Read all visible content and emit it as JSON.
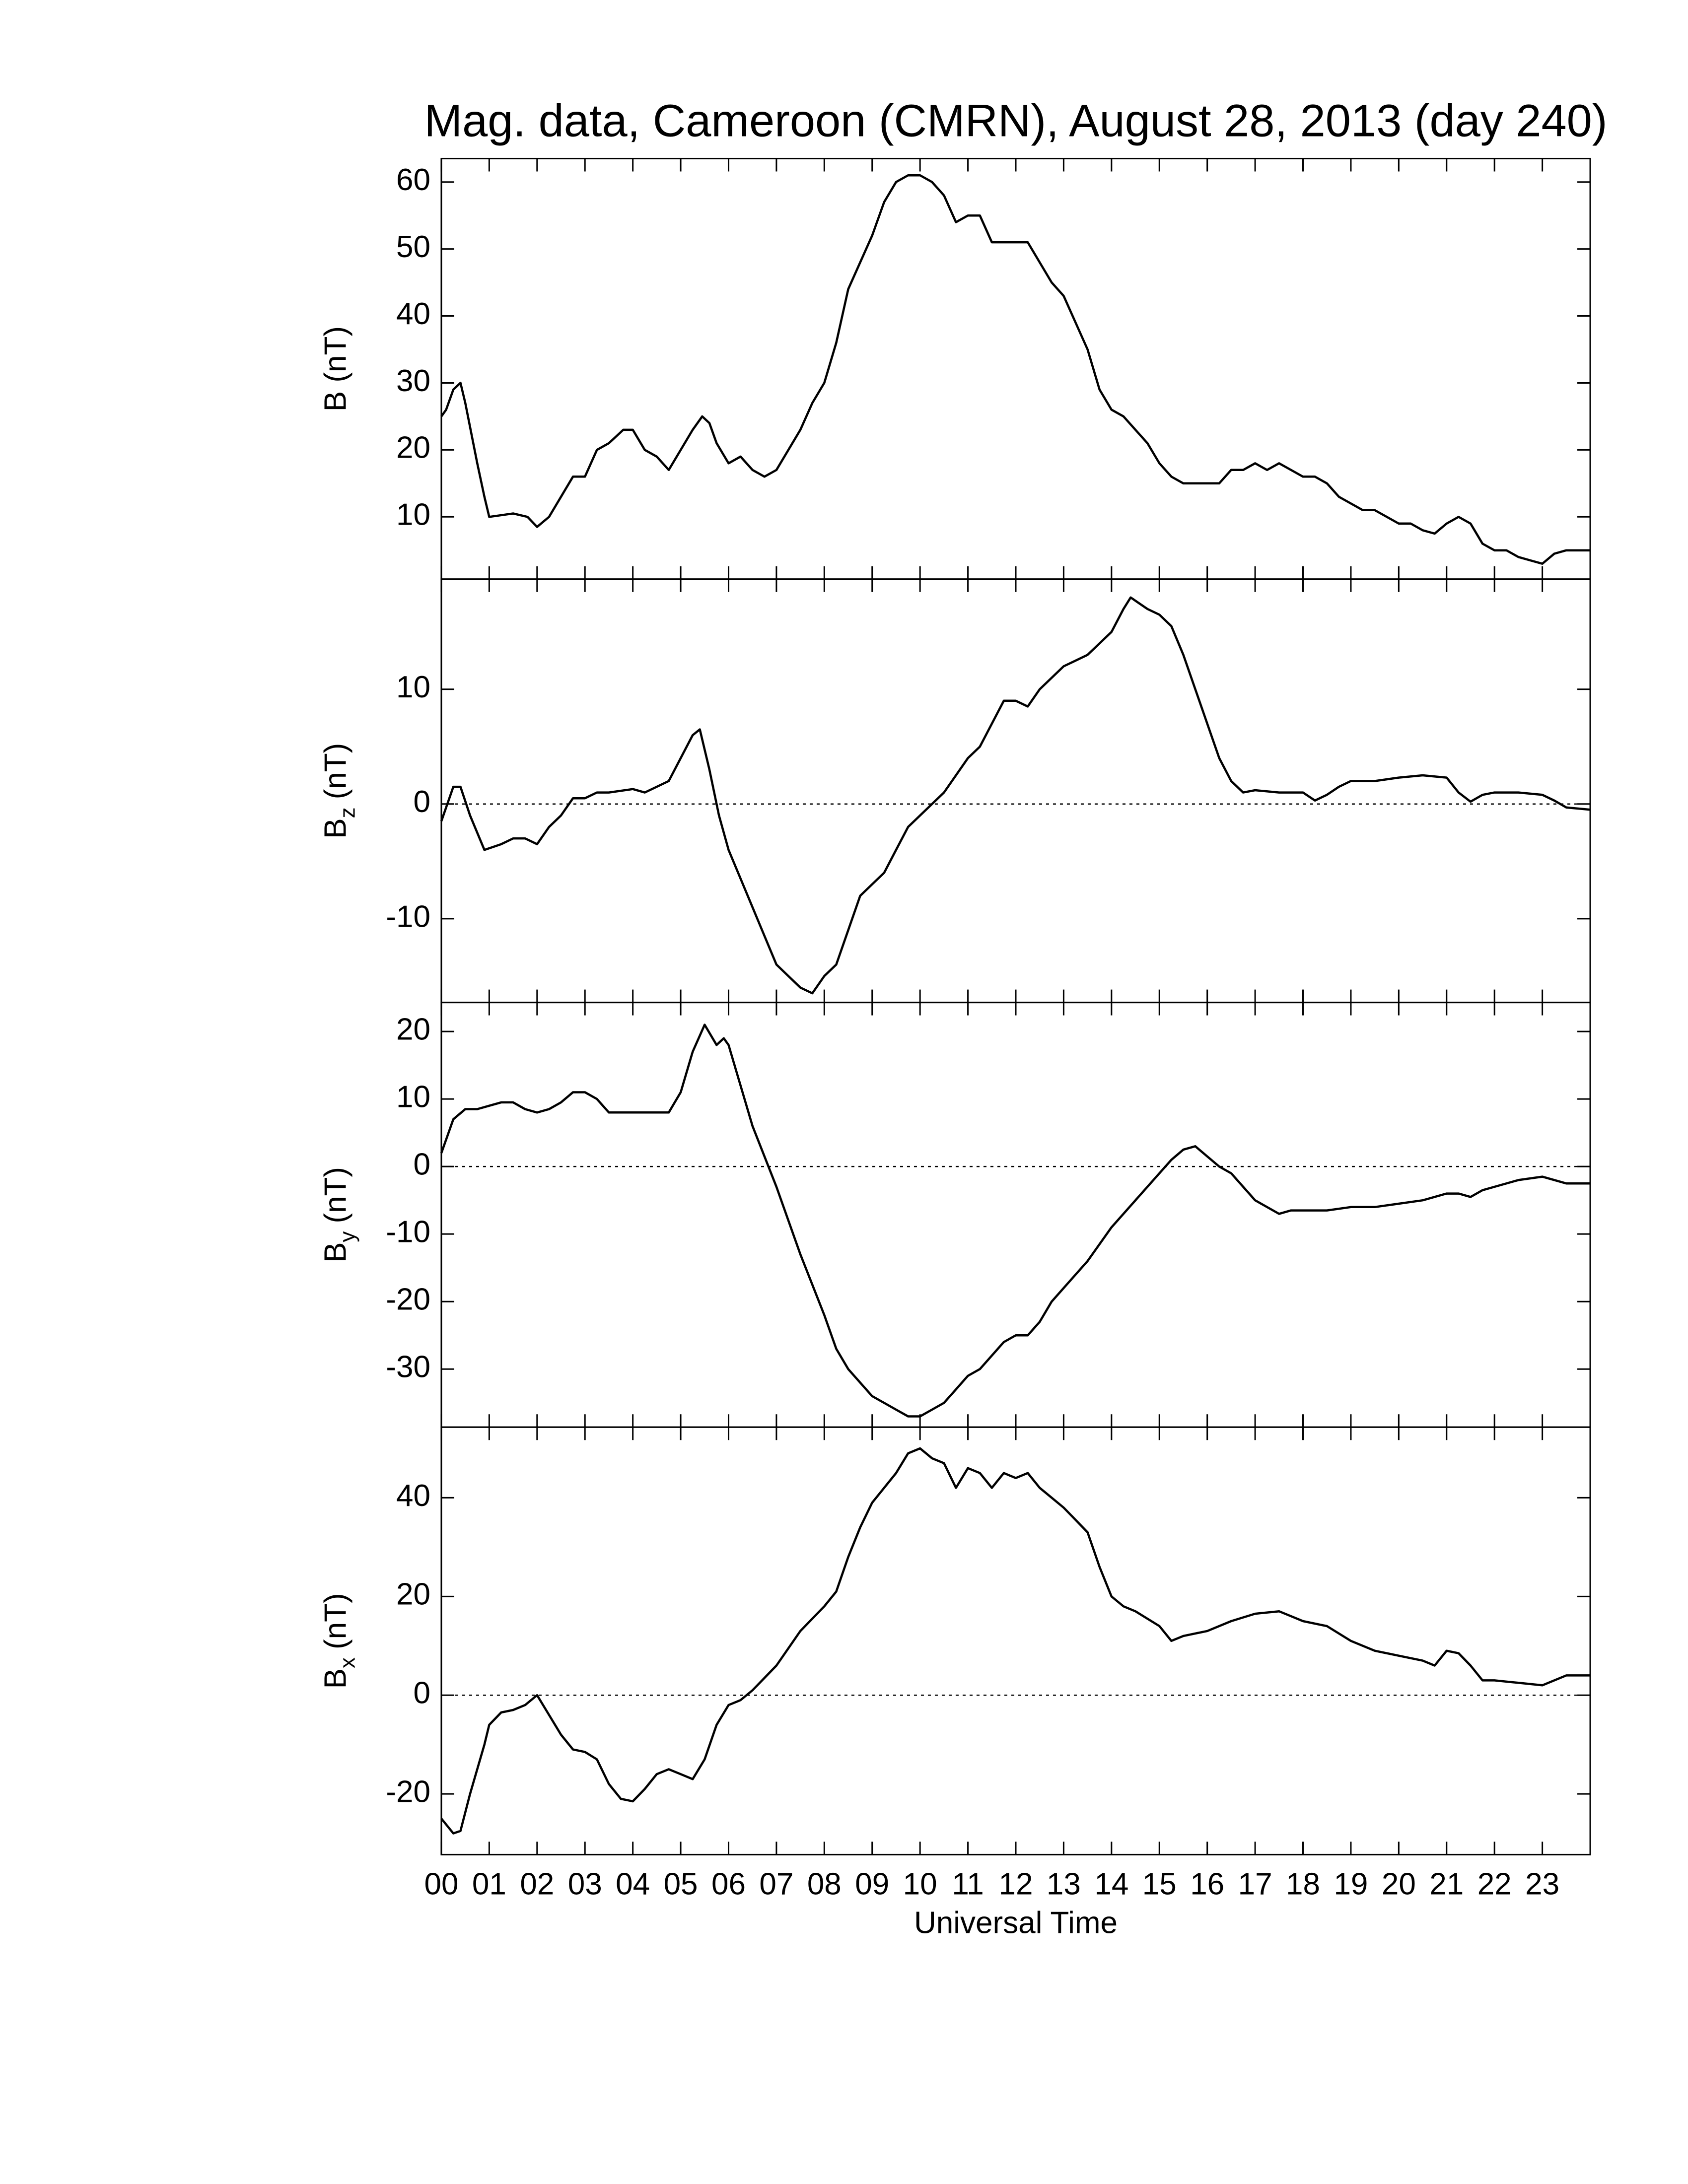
{
  "chart_data": [
    {
      "type": "line",
      "title": "Mag. data, Cameroon (CMRN), August 28, 2013 (day 240)",
      "ylabel": [
        "B (nT)"
      ],
      "color": "#000000",
      "xlim": [
        0,
        24
      ],
      "ylim": [
        0.7,
        63.5
      ],
      "yticks": [
        10,
        20,
        30,
        40,
        50,
        60
      ],
      "zero_line": false,
      "x": [
        0,
        0.1,
        0.25,
        0.4,
        0.5,
        0.75,
        0.9,
        1,
        1.5,
        1.8,
        2,
        2.25,
        2.5,
        2.75,
        3,
        3.25,
        3.5,
        3.8,
        4,
        4.25,
        4.5,
        4.75,
        5,
        5.25,
        5.45,
        5.6,
        5.75,
        6,
        6.25,
        6.5,
        6.75,
        7,
        7.25,
        7.5,
        7.75,
        8,
        8.25,
        8.5,
        8.75,
        9,
        9.25,
        9.5,
        9.75,
        10,
        10.25,
        10.5,
        10.75,
        11,
        11.25,
        11.5,
        11.75,
        12,
        12.25,
        12.5,
        12.75,
        13,
        13.25,
        13.5,
        13.75,
        14,
        14.25,
        14.5,
        14.75,
        15,
        15.25,
        15.5,
        15.75,
        16,
        16.25,
        16.5,
        16.75,
        17,
        17.25,
        17.5,
        17.75,
        18,
        18.25,
        18.5,
        18.75,
        19,
        19.25,
        19.5,
        19.75,
        20,
        20.25,
        20.5,
        20.75,
        21,
        21.25,
        21.5,
        21.75,
        22,
        22.25,
        22.5,
        22.75,
        23,
        23.25,
        23.5,
        24
      ],
      "values": [
        25,
        26,
        29,
        30,
        27,
        18,
        13,
        10,
        10.5,
        10,
        8.5,
        10,
        13,
        16,
        16,
        20,
        21,
        23,
        23,
        20,
        19,
        17,
        20,
        23,
        25,
        24,
        21,
        18,
        19,
        17,
        16,
        17,
        20,
        23,
        27,
        30,
        36,
        44,
        48,
        52,
        57,
        60,
        61,
        61,
        60,
        58,
        54,
        55,
        55,
        51,
        51,
        51,
        51,
        48,
        45,
        43,
        39,
        35,
        29,
        26,
        25,
        23,
        21,
        18,
        16,
        15,
        15,
        15,
        15,
        17,
        17,
        18,
        17,
        18,
        17,
        16,
        16,
        15,
        13,
        12,
        11,
        11,
        10,
        9,
        9,
        8,
        7.5,
        9,
        10,
        9,
        6,
        5,
        5,
        4,
        3.5,
        3,
        4.5,
        5,
        5
      ]
    },
    {
      "type": "line",
      "ylabel": [
        "B",
        "z",
        "(nT)"
      ],
      "color": "#000000",
      "xlim": [
        0,
        24
      ],
      "ylim": [
        -17.3,
        19.6
      ],
      "yticks": [
        -10,
        0,
        10
      ],
      "zero_line": true,
      "x": [
        0,
        0.25,
        0.4,
        0.6,
        0.9,
        1.25,
        1.5,
        1.75,
        2,
        2.25,
        2.5,
        2.75,
        3,
        3.25,
        3.5,
        4,
        4.25,
        4.5,
        4.75,
        5,
        5.25,
        5.4,
        5.6,
        5.8,
        6,
        6.5,
        7,
        7.5,
        7.75,
        8,
        8.25,
        8.5,
        8.75,
        9,
        9.25,
        9.5,
        9.75,
        10,
        10.5,
        11,
        11.25,
        11.5,
        11.75,
        12,
        12.25,
        12.5,
        12.75,
        13,
        13.5,
        14,
        14.25,
        14.4,
        14.75,
        15,
        15.25,
        15.5,
        15.75,
        16,
        16.25,
        16.5,
        16.75,
        17,
        17.5,
        18,
        18.25,
        18.5,
        18.75,
        19,
        19.5,
        20,
        20.5,
        21,
        21.25,
        21.5,
        21.75,
        22,
        22.5,
        23,
        23.25,
        23.5,
        24
      ],
      "values": [
        -1.5,
        1.5,
        1.5,
        -1,
        -4,
        -3.5,
        -3,
        -3,
        -3.5,
        -2,
        -1,
        0.5,
        0.5,
        1,
        1,
        1.3,
        1,
        1.5,
        2,
        4,
        6,
        6.5,
        3,
        -1,
        -4,
        -9,
        -14,
        -16,
        -16.5,
        -15,
        -14,
        -11,
        -8,
        -7,
        -6,
        -4,
        -2,
        -1,
        1,
        4,
        5,
        7,
        9,
        9,
        8.5,
        10,
        11,
        12,
        13,
        15,
        17,
        18,
        17,
        16.5,
        15.5,
        13,
        10,
        7,
        4,
        2,
        1,
        1.2,
        1,
        1,
        0.3,
        0.8,
        1.5,
        2,
        2,
        2.3,
        2.5,
        2.3,
        1,
        0.2,
        0.8,
        1,
        1,
        0.8,
        0.3,
        -0.3,
        -0.5
      ]
    },
    {
      "type": "line",
      "ylabel": [
        "B",
        "y",
        "(nT)"
      ],
      "color": "#000000",
      "xlim": [
        0,
        24
      ],
      "ylim": [
        -38.6,
        24.3
      ],
      "yticks": [
        -30,
        -20,
        -10,
        0,
        10,
        20
      ],
      "zero_line": true,
      "x": [
        0,
        0.25,
        0.5,
        0.75,
        1,
        1.25,
        1.5,
        1.75,
        2,
        2.25,
        2.5,
        2.75,
        3,
        3.25,
        3.5,
        3.75,
        4,
        4.5,
        4.75,
        5,
        5.25,
        5.5,
        5.75,
        5.9,
        6,
        6.25,
        6.5,
        7,
        7.5,
        8,
        8.25,
        8.5,
        8.75,
        9,
        9.5,
        9.75,
        10,
        10.25,
        10.5,
        10.75,
        11,
        11.25,
        11.5,
        11.75,
        12,
        12.25,
        12.5,
        12.75,
        13,
        13.5,
        14,
        14.5,
        15,
        15.25,
        15.5,
        15.75,
        16,
        16.25,
        16.5,
        16.75,
        17,
        17.25,
        17.5,
        17.75,
        18,
        18.5,
        19,
        19.5,
        20,
        20.5,
        21,
        21.25,
        21.5,
        21.75,
        22,
        22.5,
        23,
        23.5,
        24
      ],
      "values": [
        2,
        7,
        8.5,
        8.5,
        9,
        9.5,
        9.5,
        8.5,
        8,
        8.5,
        9.5,
        11,
        11,
        10,
        8,
        8,
        8,
        8,
        8,
        11,
        17,
        21,
        18,
        19,
        18,
        12,
        6,
        -3,
        -13,
        -22,
        -27,
        -30,
        -32,
        -34,
        -36,
        -37,
        -37,
        -36,
        -35,
        -33,
        -31,
        -30,
        -28,
        -26,
        -25,
        -25,
        -23,
        -20,
        -18,
        -14,
        -9,
        -5,
        -1,
        1,
        2.5,
        3,
        1.5,
        0,
        -1,
        -3,
        -5,
        -6,
        -7,
        -6.5,
        -6.5,
        -6.5,
        -6,
        -6,
        -5.5,
        -5,
        -4,
        -4,
        -4.5,
        -3.5,
        -3,
        -2,
        -1.5,
        -2.5,
        -2.5
      ]
    },
    {
      "type": "line",
      "ylabel": [
        "B",
        "x",
        "(nT)"
      ],
      "xlabel": "Universal Time",
      "color": "#000000",
      "xlim": [
        0,
        24
      ],
      "ylim": [
        -32.3,
        54.3
      ],
      "yticks": [
        -20,
        0,
        20,
        40
      ],
      "zero_line": true,
      "xticks": [
        {
          "value": 0,
          "label": "00"
        },
        {
          "value": 1,
          "label": "01"
        },
        {
          "value": 2,
          "label": "02"
        },
        {
          "value": 3,
          "label": "03"
        },
        {
          "value": 4,
          "label": "04"
        },
        {
          "value": 5,
          "label": "05"
        },
        {
          "value": 6,
          "label": "06"
        },
        {
          "value": 7,
          "label": "07"
        },
        {
          "value": 8,
          "label": "08"
        },
        {
          "value": 9,
          "label": "09"
        },
        10,
        11,
        12,
        13,
        14,
        15,
        16,
        17,
        18,
        19,
        20,
        21,
        22,
        23
      ],
      "x": [
        0,
        0.25,
        0.4,
        0.6,
        0.9,
        1,
        1.25,
        1.5,
        1.75,
        2,
        2.25,
        2.5,
        2.75,
        3,
        3.25,
        3.5,
        3.75,
        4,
        4.25,
        4.5,
        4.75,
        5,
        5.25,
        5.5,
        5.75,
        6,
        6.25,
        6.5,
        7,
        7.5,
        8,
        8.25,
        8.5,
        8.75,
        9,
        9.5,
        9.75,
        10,
        10.25,
        10.5,
        10.75,
        11,
        11.25,
        11.5,
        11.75,
        12,
        12.25,
        12.5,
        12.75,
        13,
        13.5,
        13.75,
        14,
        14.25,
        14.5,
        15,
        15.25,
        15.5,
        16,
        16.5,
        17,
        17.5,
        17.75,
        18,
        18.5,
        19,
        19.5,
        20,
        20.5,
        20.75,
        21,
        21.25,
        21.5,
        21.75,
        22,
        22.5,
        23,
        23.5,
        24
      ],
      "values": [
        -25,
        -28,
        -27.5,
        -20,
        -10,
        -6,
        -3.5,
        -3,
        -2,
        0,
        -4,
        -8,
        -11,
        -11.5,
        -13,
        -18,
        -21,
        -21.5,
        -19,
        -16,
        -15,
        -16,
        -17,
        -13,
        -6,
        -2,
        -1,
        1,
        6,
        13,
        18,
        21,
        28,
        34,
        39,
        45,
        49,
        50,
        48,
        47,
        42,
        46,
        45,
        42,
        45,
        44,
        45,
        42,
        40,
        38,
        33,
        26,
        20,
        18,
        17,
        14,
        11,
        12,
        13,
        15,
        16.5,
        17,
        16,
        15,
        14,
        11,
        9,
        8,
        7,
        6,
        9,
        8.5,
        6,
        3,
        3,
        2.5,
        2,
        4,
        4
      ]
    }
  ]
}
